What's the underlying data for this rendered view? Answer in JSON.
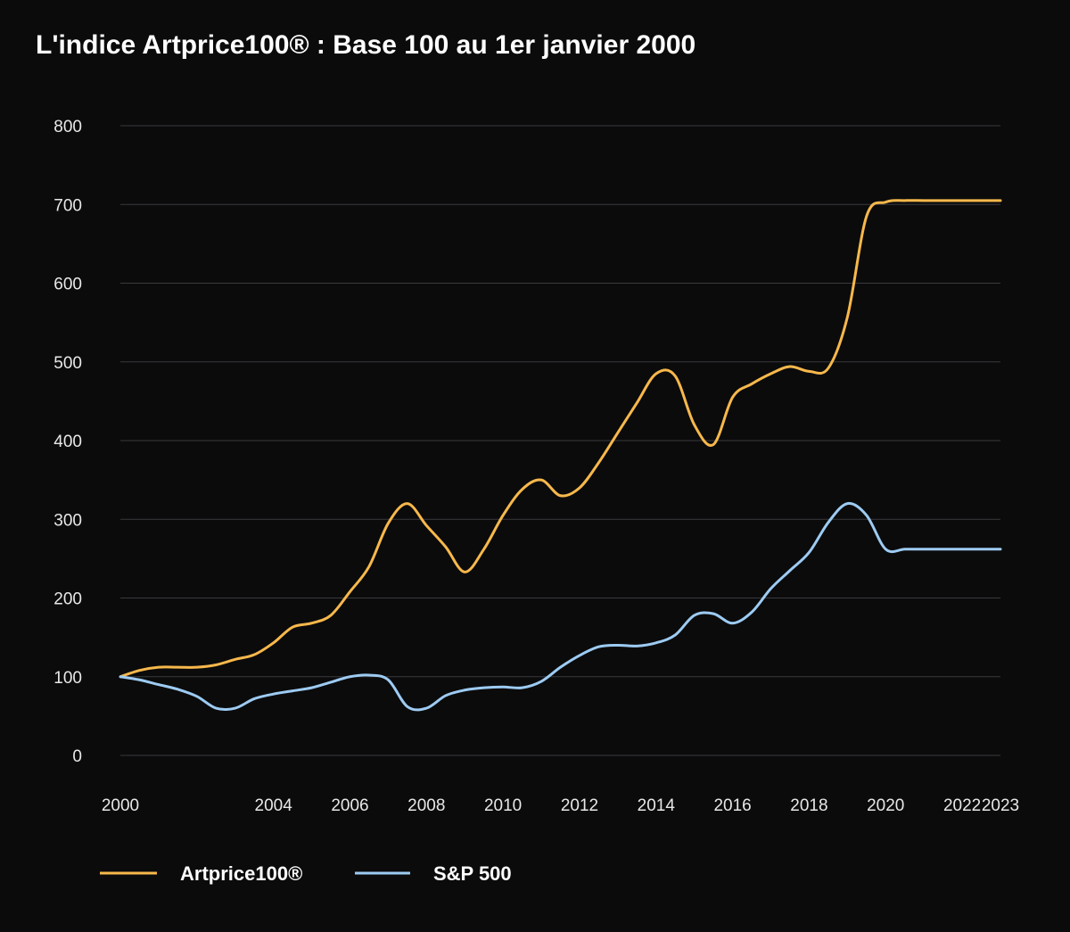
{
  "title": "L'indice Artprice100® : Base 100 au 1er janvier 2000",
  "chart_data": {
    "type": "line",
    "title": "L'indice Artprice100® : Base 100 au 1er janvier 2000",
    "xlabel": "",
    "ylabel": "",
    "xlim": [
      2000,
      2023
    ],
    "ylim": [
      0,
      800
    ],
    "grid": true,
    "legend": "bottom-left",
    "y_ticks": [
      "0",
      "100",
      "200",
      "300",
      "400",
      "500",
      "600",
      "700",
      "800"
    ],
    "x_ticks": [
      "2000",
      "2004",
      "2006",
      "2008",
      "2010",
      "2012",
      "2014",
      "2016",
      "2018",
      "2020",
      "2022",
      "2023"
    ],
    "colors": {
      "background": "#0b0b0c",
      "grid": "#3a3a3d",
      "artprice": "#f7b84b",
      "sp500": "#9dcbf2"
    },
    "series": [
      {
        "name": "Artprice100®",
        "x": [
          2000,
          2000.5,
          2001,
          2001.5,
          2002,
          2002.5,
          2003,
          2003.5,
          2004,
          2004.5,
          2005,
          2005.5,
          2006,
          2006.5,
          2007,
          2007.5,
          2008,
          2008.5,
          2009,
          2009.5,
          2010,
          2010.5,
          2011,
          2011.5,
          2012,
          2012.5,
          2013,
          2013.5,
          2014,
          2014.5,
          2015,
          2015.5,
          2016,
          2016.5,
          2017,
          2017.5,
          2018,
          2018.5,
          2019,
          2019.5,
          2020,
          2020.5,
          2021,
          2021.5,
          2022,
          2022.5,
          2023
        ],
        "values": [
          100,
          108,
          112,
          112,
          112,
          115,
          122,
          128,
          143,
          163,
          168,
          178,
          208,
          240,
          295,
          320,
          292,
          265,
          233,
          262,
          305,
          338,
          350,
          330,
          340,
          372,
          410,
          448,
          485,
          482,
          420,
          395,
          455,
          472,
          485,
          494,
          488,
          492,
          557,
          685,
          703,
          705,
          705,
          705,
          705,
          705,
          705
        ]
      },
      {
        "name": "S&P 500",
        "x": [
          2000,
          2000.5,
          2001,
          2001.5,
          2002,
          2002.5,
          2003,
          2003.5,
          2004,
          2004.5,
          2005,
          2005.5,
          2006,
          2006.5,
          2007,
          2007.5,
          2008,
          2008.5,
          2009,
          2009.5,
          2010,
          2010.5,
          2011,
          2011.5,
          2012,
          2012.5,
          2013,
          2013.5,
          2014,
          2014.5,
          2015,
          2015.5,
          2016,
          2016.5,
          2017,
          2017.5,
          2018,
          2018.5,
          2019,
          2019.5,
          2020,
          2020.5,
          2021,
          2021.5,
          2022,
          2022.5,
          2023
        ],
        "values": [
          100,
          96,
          90,
          84,
          75,
          60,
          60,
          72,
          78,
          82,
          86,
          93,
          100,
          102,
          96,
          62,
          60,
          76,
          83,
          86,
          87,
          86,
          94,
          112,
          127,
          138,
          140,
          139,
          143,
          153,
          178,
          180,
          168,
          182,
          212,
          235,
          258,
          296,
          320,
          305,
          262,
          262,
          262,
          262,
          262,
          262,
          262
        ]
      }
    ]
  },
  "legend": {
    "items": [
      {
        "label": "Artprice100®",
        "color": "#f7b84b"
      },
      {
        "label": "S&P 500",
        "color": "#9dcbf2"
      }
    ]
  }
}
